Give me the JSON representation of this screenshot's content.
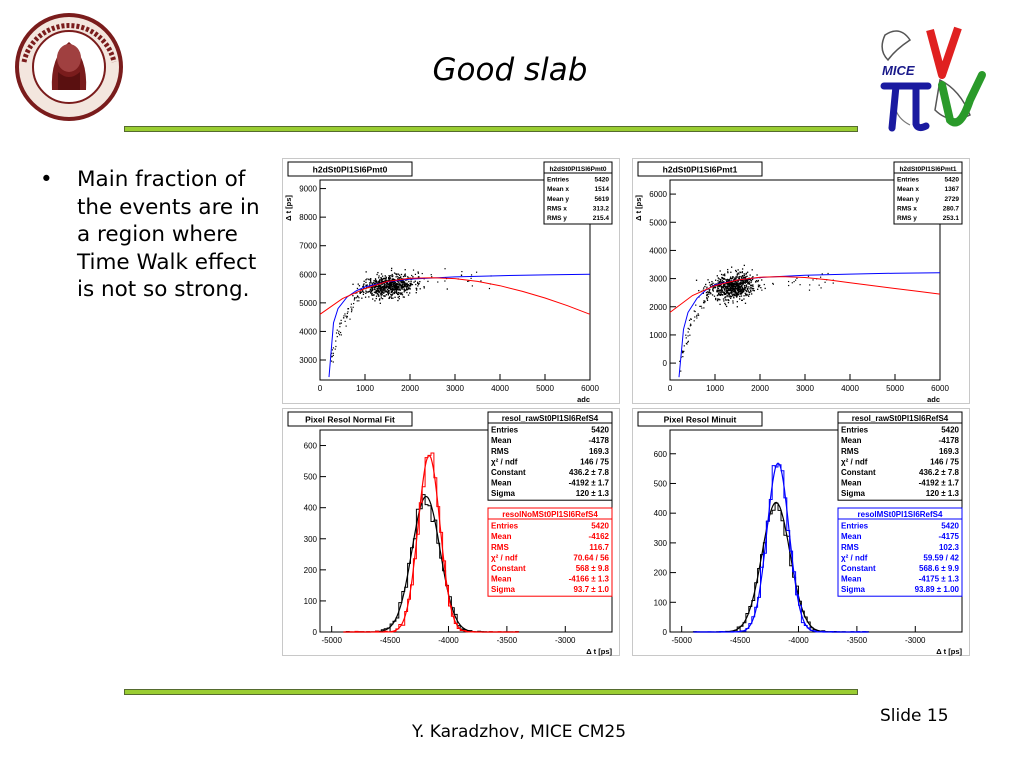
{
  "slide": {
    "title": "Good slab",
    "bullet": "Main fraction of the events are in a region where Time Walk effect is not so strong.",
    "footer": "Y. Karadzhov, MICE CM25",
    "slide_number": "Slide 15",
    "colors": {
      "accent_bar": "#9acd32",
      "fit_red": "#ff0000",
      "fit_blue": "#0000ff"
    },
    "logos": [
      "university-seal-logo",
      "mice-logo"
    ]
  },
  "chart_data": [
    {
      "type": "scatter",
      "title": "h2dSt0Pl1Sl6Pmt0",
      "xlabel": "adc",
      "ylabel": "Δ t [ps]",
      "xlim": [
        0,
        6000
      ],
      "ylim": [
        2300,
        9300
      ],
      "xticks": [
        0,
        1000,
        2000,
        3000,
        4000,
        5000,
        6000
      ],
      "yticks": [
        3000,
        4000,
        5000,
        6000,
        7000,
        8000,
        9000
      ],
      "stats": {
        "name": "h2dSt0Pl1Sl6Pmt0",
        "rows": [
          [
            "Entries",
            "5420"
          ],
          [
            "Mean x",
            "1514"
          ],
          [
            "Mean y",
            "5619"
          ],
          [
            "RMS x",
            "313.2"
          ],
          [
            "RMS y",
            "215.4"
          ]
        ]
      },
      "cluster": {
        "x_mean": 1514,
        "y_mean": 5619,
        "x_rms": 313.2,
        "y_rms": 215.4
      },
      "series": [
        {
          "color": "#0000ff",
          "x": [
            200,
            300,
            400,
            600,
            800,
            1000,
            1500,
            2000,
            3000,
            4000,
            5000,
            6000
          ],
          "y": [
            2400,
            4300,
            4800,
            5200,
            5420,
            5560,
            5740,
            5830,
            5910,
            5950,
            5980,
            6000
          ]
        },
        {
          "color": "#ff0000",
          "x": [
            0,
            500,
            1000,
            1500,
            2000,
            2500,
            3000,
            3500,
            4000,
            4500,
            5000,
            5500,
            6000
          ],
          "y": [
            4600,
            5150,
            5500,
            5750,
            5860,
            5880,
            5850,
            5750,
            5600,
            5400,
            5170,
            4900,
            4600
          ]
        }
      ]
    },
    {
      "type": "scatter",
      "title": "h2dSt0Pl1Sl6Pmt1",
      "xlabel": "adc",
      "ylabel": "Δ t [ps]",
      "xlim": [
        0,
        6000
      ],
      "ylim": [
        -600,
        6500
      ],
      "xticks": [
        0,
        1000,
        2000,
        3000,
        4000,
        5000,
        6000
      ],
      "yticks": [
        0,
        1000,
        2000,
        3000,
        4000,
        5000,
        6000
      ],
      "stats": {
        "name": "h2dSt0Pl1Sl6Pmt1",
        "rows": [
          [
            "Entries",
            "5420"
          ],
          [
            "Mean x",
            "1367"
          ],
          [
            "Mean y",
            "2729"
          ],
          [
            "RMS x",
            "280.7"
          ],
          [
            "RMS y",
            "253.1"
          ]
        ]
      },
      "cluster": {
        "x_mean": 1367,
        "y_mean": 2729,
        "x_rms": 280.7,
        "y_rms": 253.1
      },
      "series": [
        {
          "color": "#0000ff",
          "x": [
            200,
            300,
            400,
            600,
            800,
            1000,
            1500,
            2000,
            3000,
            4000,
            5000,
            6000
          ],
          "y": [
            -500,
            1200,
            1800,
            2300,
            2600,
            2780,
            2950,
            3040,
            3120,
            3160,
            3190,
            3210
          ]
        },
        {
          "color": "#ff0000",
          "x": [
            0,
            500,
            1000,
            1500,
            2000,
            2500,
            3000,
            3500,
            4000,
            4500,
            5000,
            5500,
            6000
          ],
          "y": [
            1800,
            2400,
            2750,
            2950,
            3050,
            3070,
            3040,
            2960,
            2850,
            2750,
            2650,
            2550,
            2450
          ]
        }
      ]
    },
    {
      "type": "histogram",
      "title": "Pixel Resol Normal Fit",
      "xlabel": "Δ t [ps]",
      "xlim": [
        -5100,
        -2600
      ],
      "ylim": [
        0,
        650
      ],
      "xticks": [
        -5000,
        -4500,
        -4000,
        -3500,
        -3000
      ],
      "yticks": [
        0,
        100,
        200,
        300,
        400,
        500,
        600
      ],
      "stats": [
        {
          "name": "resol_rawSt0Pl1Sl6RefS4",
          "color": "#000000",
          "rows": [
            [
              "Entries",
              "5420"
            ],
            [
              "Mean",
              "-4178"
            ],
            [
              "RMS",
              "169.3"
            ],
            [
              "χ² / ndf",
              "146 / 75"
            ],
            [
              "Constant",
              "436.2 ± 7.8"
            ],
            [
              "Mean",
              "-4192 ± 1.7"
            ],
            [
              "Sigma",
              "120 ± 1.3"
            ]
          ]
        },
        {
          "name": "resolNoMSt0Pl1Sl6RefS4",
          "color": "#ff0000",
          "rows": [
            [
              "Entries",
              "5420"
            ],
            [
              "Mean",
              "-4162"
            ],
            [
              "RMS",
              "116.7"
            ],
            [
              "χ² / ndf",
              "70.64 / 56"
            ],
            [
              "Constant",
              "568 ± 9.8"
            ],
            [
              "Mean",
              "-4166 ± 1.3"
            ],
            [
              "Sigma",
              "93.7 ± 1.0"
            ]
          ]
        }
      ],
      "series": [
        {
          "color": "#000000",
          "constant": 436.2,
          "mean": -4192,
          "sigma": 120
        },
        {
          "color": "#ff0000",
          "constant": 568,
          "mean": -4166,
          "sigma": 93.7
        }
      ]
    },
    {
      "type": "histogram",
      "title": "Pixel Resol Minuit",
      "xlabel": "Δ t [ps]",
      "xlim": [
        -5100,
        -2600
      ],
      "ylim": [
        0,
        680
      ],
      "xticks": [
        -5000,
        -4500,
        -4000,
        -3500,
        -3000
      ],
      "yticks": [
        0,
        100,
        200,
        300,
        400,
        500,
        600
      ],
      "stats": [
        {
          "name": "resol_rawSt0Pl1Sl6RefS4",
          "color": "#000000",
          "rows": [
            [
              "Entries",
              "5420"
            ],
            [
              "Mean",
              "-4178"
            ],
            [
              "RMS",
              "169.3"
            ],
            [
              "χ² / ndf",
              "146 / 75"
            ],
            [
              "Constant",
              "436.2 ± 7.8"
            ],
            [
              "Mean",
              "-4192 ± 1.7"
            ],
            [
              "Sigma",
              "120 ± 1.3"
            ]
          ]
        },
        {
          "name": "resolMSt0Pl1Sl6RefS4",
          "color": "#0000ff",
          "rows": [
            [
              "Entries",
              "5420"
            ],
            [
              "Mean",
              "-4175"
            ],
            [
              "RMS",
              "102.3"
            ],
            [
              "χ² / ndf",
              "59.59 / 42"
            ],
            [
              "Constant",
              "568.6 ± 9.9"
            ],
            [
              "Mean",
              "-4175 ± 1.3"
            ],
            [
              "Sigma",
              "93.89 ± 1.00"
            ]
          ]
        }
      ],
      "series": [
        {
          "color": "#000000",
          "constant": 436.2,
          "mean": -4192,
          "sigma": 120
        },
        {
          "color": "#0000ff",
          "constant": 568.6,
          "mean": -4175,
          "sigma": 93.89
        }
      ]
    }
  ]
}
